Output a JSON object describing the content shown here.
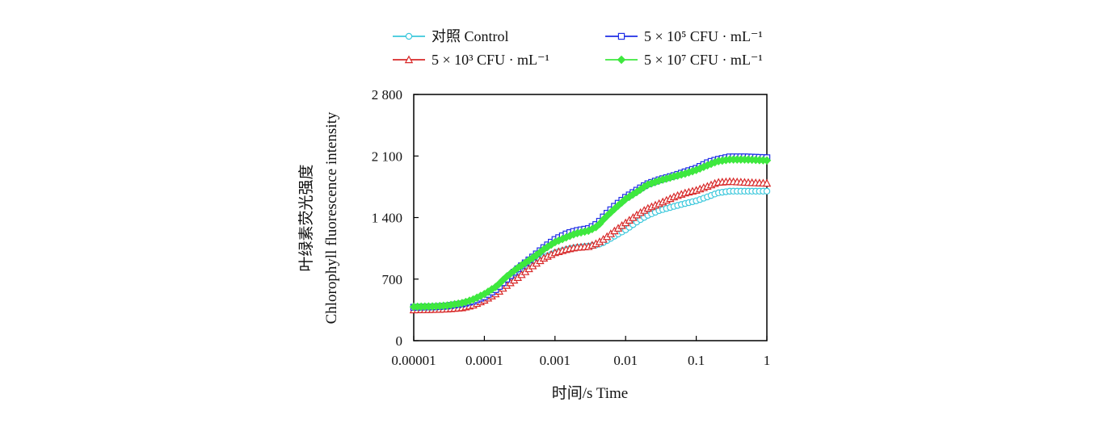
{
  "chart_data": {
    "type": "line",
    "x_scale": "log",
    "xlabel": "时间/s  Time",
    "ylabel_cn": "叶绿素荧光强度",
    "ylabel_en": "Chlorophyll fluorescence intensity",
    "xlim": [
      1e-05,
      1
    ],
    "ylim": [
      0,
      2800
    ],
    "x_ticks": [
      {
        "value": 1e-05,
        "label": "0.00001"
      },
      {
        "value": 0.0001,
        "label": "0.0001"
      },
      {
        "value": 0.001,
        "label": "0.001"
      },
      {
        "value": 0.01,
        "label": "0.01"
      },
      {
        "value": 0.1,
        "label": "0.1"
      },
      {
        "value": 1,
        "label": "1"
      }
    ],
    "y_ticks": [
      {
        "value": 0,
        "label": "0"
      },
      {
        "value": 700,
        "label": "700"
      },
      {
        "value": 1400,
        "label": "1 400"
      },
      {
        "value": 2100,
        "label": "2 100"
      },
      {
        "value": 2800,
        "label": "2 800"
      }
    ],
    "grid": false,
    "legend_position": "top",
    "series": [
      {
        "name": "对照 Control",
        "marker": "circle",
        "color": "#3cc8dc",
        "points": [
          [
            1e-05,
            370
          ],
          [
            2e-05,
            370
          ],
          [
            3e-05,
            372
          ],
          [
            5e-05,
            390
          ],
          [
            7e-05,
            415
          ],
          [
            0.0001,
            470
          ],
          [
            0.00015,
            560
          ],
          [
            0.0002,
            650
          ],
          [
            0.0003,
            750
          ],
          [
            0.0005,
            880
          ],
          [
            0.0007,
            950
          ],
          [
            0.001,
            1000
          ],
          [
            0.0015,
            1040
          ],
          [
            0.002,
            1060
          ],
          [
            0.003,
            1075
          ],
          [
            0.004,
            1090
          ],
          [
            0.005,
            1120
          ],
          [
            0.007,
            1190
          ],
          [
            0.01,
            1260
          ],
          [
            0.015,
            1360
          ],
          [
            0.02,
            1420
          ],
          [
            0.03,
            1480
          ],
          [
            0.05,
            1530
          ],
          [
            0.07,
            1560
          ],
          [
            0.1,
            1590
          ],
          [
            0.15,
            1640
          ],
          [
            0.2,
            1680
          ],
          [
            0.3,
            1700
          ],
          [
            0.5,
            1700
          ],
          [
            1,
            1700
          ]
        ]
      },
      {
        "name": "5 × 10³ CFU · mL⁻¹",
        "marker": "triangle",
        "color": "#d82828",
        "points": [
          [
            1e-05,
            350
          ],
          [
            2e-05,
            355
          ],
          [
            3e-05,
            360
          ],
          [
            5e-05,
            375
          ],
          [
            7e-05,
            405
          ],
          [
            0.0001,
            460
          ],
          [
            0.00015,
            540
          ],
          [
            0.0002,
            620
          ],
          [
            0.0003,
            720
          ],
          [
            0.0005,
            860
          ],
          [
            0.0007,
            940
          ],
          [
            0.001,
            1000
          ],
          [
            0.0015,
            1040
          ],
          [
            0.002,
            1060
          ],
          [
            0.003,
            1070
          ],
          [
            0.004,
            1110
          ],
          [
            0.005,
            1160
          ],
          [
            0.007,
            1250
          ],
          [
            0.01,
            1340
          ],
          [
            0.015,
            1440
          ],
          [
            0.02,
            1500
          ],
          [
            0.03,
            1560
          ],
          [
            0.05,
            1640
          ],
          [
            0.07,
            1680
          ],
          [
            0.1,
            1710
          ],
          [
            0.15,
            1760
          ],
          [
            0.2,
            1800
          ],
          [
            0.3,
            1810
          ],
          [
            0.5,
            1800
          ],
          [
            1,
            1790
          ]
        ]
      },
      {
        "name": "5 × 10⁵  CFU · mL⁻¹",
        "marker": "square",
        "color": "#1f2ee6",
        "points": [
          [
            1e-05,
            380
          ],
          [
            2e-05,
            385
          ],
          [
            3e-05,
            395
          ],
          [
            5e-05,
            420
          ],
          [
            7e-05,
            450
          ],
          [
            0.0001,
            500
          ],
          [
            0.00015,
            590
          ],
          [
            0.0002,
            690
          ],
          [
            0.0003,
            820
          ],
          [
            0.0005,
            960
          ],
          [
            0.0007,
            1060
          ],
          [
            0.001,
            1150
          ],
          [
            0.0015,
            1220
          ],
          [
            0.002,
            1250
          ],
          [
            0.003,
            1275
          ],
          [
            0.004,
            1330
          ],
          [
            0.005,
            1420
          ],
          [
            0.007,
            1530
          ],
          [
            0.01,
            1630
          ],
          [
            0.015,
            1720
          ],
          [
            0.02,
            1780
          ],
          [
            0.03,
            1830
          ],
          [
            0.05,
            1880
          ],
          [
            0.07,
            1920
          ],
          [
            0.1,
            1960
          ],
          [
            0.15,
            2030
          ],
          [
            0.2,
            2060
          ],
          [
            0.3,
            2090
          ],
          [
            0.5,
            2090
          ],
          [
            1,
            2080
          ]
        ]
      },
      {
        "name": "5 × 10⁷  CFU · mL⁻¹",
        "marker": "diamond",
        "color": "#3ee83e",
        "points": [
          [
            1e-05,
            385
          ],
          [
            2e-05,
            390
          ],
          [
            3e-05,
            400
          ],
          [
            5e-05,
            430
          ],
          [
            7e-05,
            470
          ],
          [
            0.0001,
            530
          ],
          [
            0.00015,
            620
          ],
          [
            0.0002,
            720
          ],
          [
            0.0003,
            830
          ],
          [
            0.0005,
            950
          ],
          [
            0.0007,
            1040
          ],
          [
            0.001,
            1120
          ],
          [
            0.0015,
            1180
          ],
          [
            0.002,
            1220
          ],
          [
            0.003,
            1250
          ],
          [
            0.004,
            1300
          ],
          [
            0.005,
            1390
          ],
          [
            0.007,
            1500
          ],
          [
            0.01,
            1610
          ],
          [
            0.015,
            1700
          ],
          [
            0.02,
            1770
          ],
          [
            0.03,
            1820
          ],
          [
            0.05,
            1870
          ],
          [
            0.07,
            1900
          ],
          [
            0.1,
            1940
          ],
          [
            0.15,
            2000
          ],
          [
            0.2,
            2040
          ],
          [
            0.3,
            2060
          ],
          [
            0.5,
            2060
          ],
          [
            1,
            2050
          ]
        ]
      }
    ]
  }
}
